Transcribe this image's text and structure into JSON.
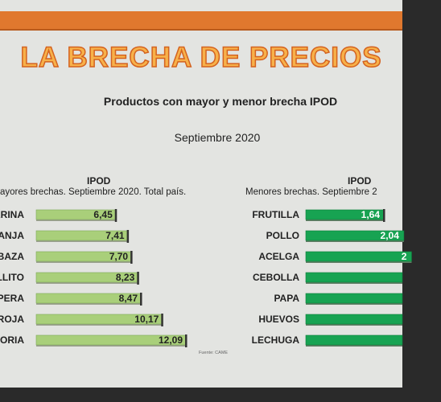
{
  "slide": {
    "title": "LA BRECHA DE PRECIOS",
    "subtitle": "Productos con mayor y menor brecha IPOD",
    "date": "Septiembre 2020"
  },
  "left_panel": {
    "title": "IPOD",
    "subtitle": "ayores brechas. Septiembre 2020. Total país.",
    "source": "Fuente: CAME"
  },
  "right_panel": {
    "title": "IPOD",
    "subtitle": "Menores brechas. Septiembre 2"
  },
  "colors": {
    "left_bar": "#a9cf7a",
    "right_bar": "#17a352",
    "title_fill": "#f7b14a",
    "title_stroke": "#d4621f"
  },
  "chart_data": [
    {
      "type": "bar",
      "orientation": "horizontal",
      "title": "IPOD",
      "categories": [
        "ARINA",
        "RANJA",
        "BAZA",
        "ALLITO",
        "PERA",
        "ROJA",
        "ORIA"
      ],
      "values": [
        6.45,
        7.41,
        7.7,
        8.23,
        8.47,
        10.17,
        12.09
      ],
      "value_labels": [
        "6,45",
        "7,41",
        "7,70",
        "8,23",
        "8,47",
        "10,17",
        "12,09"
      ]
    },
    {
      "type": "bar",
      "orientation": "horizontal",
      "title": "IPOD",
      "categories": [
        "FRUTILLA",
        "POLLO",
        "ACELGA",
        "CEBOLLA",
        "PAPA",
        "HUEVOS",
        "LECHUGA"
      ],
      "values": [
        1.64,
        2.04,
        2.2,
        null,
        null,
        null,
        null
      ],
      "value_labels": [
        "1,64",
        "2,04",
        "2",
        "",
        "",
        "",
        ""
      ]
    }
  ]
}
